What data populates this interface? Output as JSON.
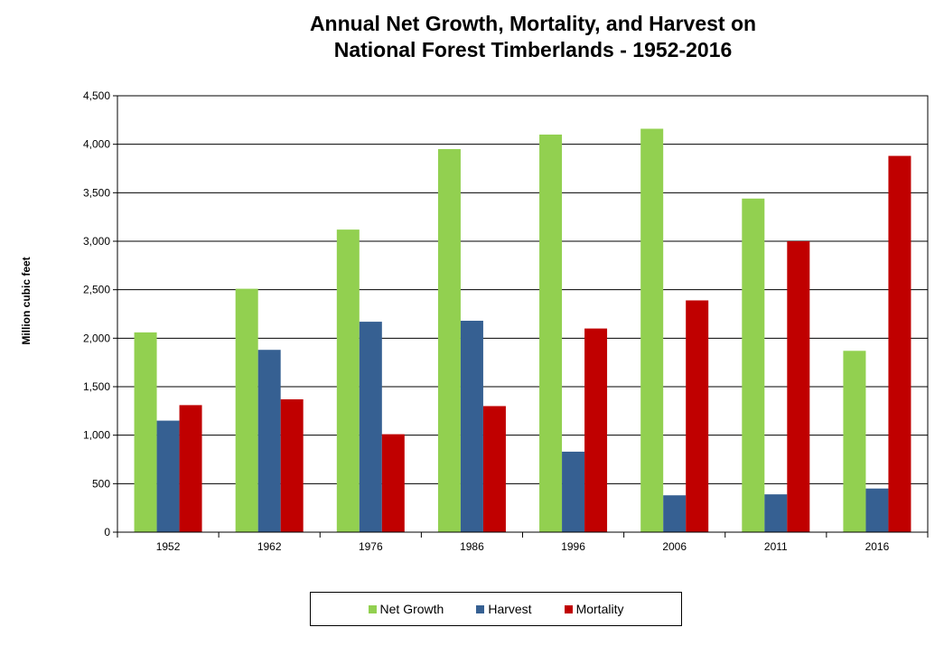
{
  "chart_data": {
    "type": "bar",
    "title_lines": [
      "Annual Net Growth, Mortality, and Harvest on",
      "National Forest Timberlands - 1952-2016"
    ],
    "ylabel": "Million cubic feet",
    "xlabel": "",
    "categories": [
      "1952",
      "1962",
      "1976",
      "1986",
      "1996",
      "2006",
      "2011",
      "2016"
    ],
    "series": [
      {
        "name": "Net Growth",
        "color": "#92d050",
        "values": [
          2060,
          2510,
          3120,
          3950,
          4100,
          4160,
          3440,
          1870
        ]
      },
      {
        "name": "Harvest",
        "color": "#366092",
        "values": [
          1150,
          1880,
          2170,
          2180,
          830,
          380,
          390,
          450
        ]
      },
      {
        "name": "Mortality",
        "color": "#c00000",
        "values": [
          1310,
          1370,
          1010,
          1300,
          2100,
          2390,
          3000,
          3880
        ]
      }
    ],
    "ylim": [
      0,
      4500
    ],
    "yticks": [
      0,
      500,
      1000,
      1500,
      2000,
      2500,
      3000,
      3500,
      4000,
      4500
    ],
    "ytick_labels": [
      "0",
      "500",
      "1,000",
      "1,500",
      "2,000",
      "2,500",
      "3,000",
      "3,500",
      "4,000",
      "4,500"
    ],
    "grid": "horizontal",
    "legend_position": "bottom"
  }
}
